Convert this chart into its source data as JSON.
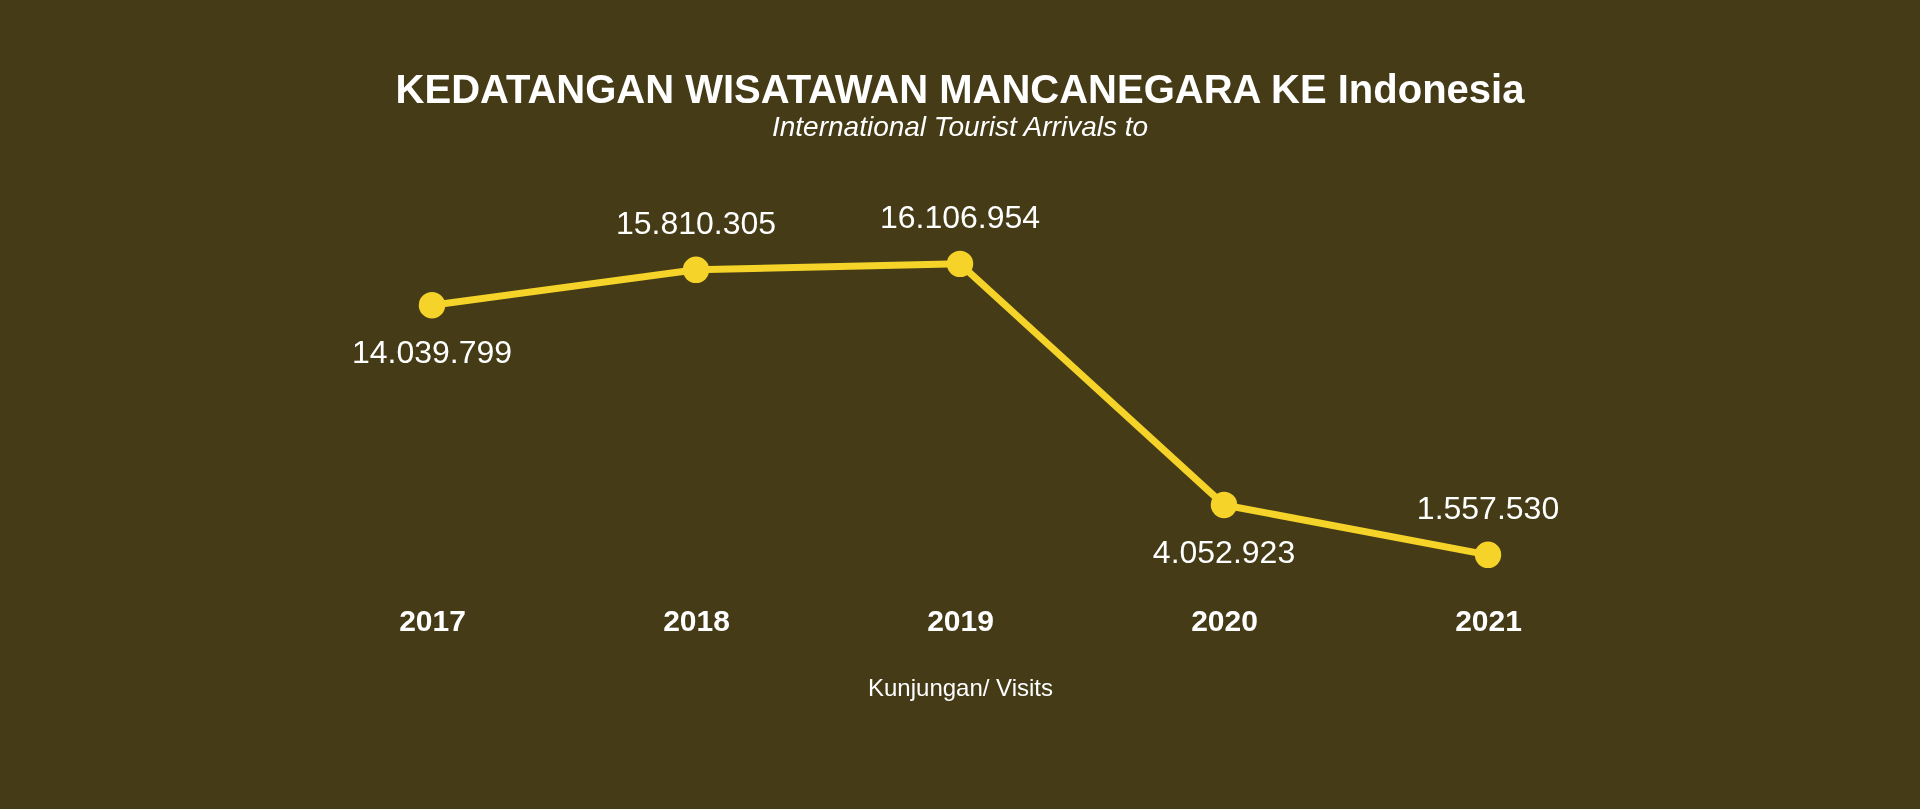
{
  "chart_data": {
    "type": "line",
    "title": "KEDATANGAN WISATAWAN MANCANEGARA KE Indonesia",
    "subtitle": "International Tourist Arrivals to",
    "xlabel": "Kunjungan/  Visits",
    "categories": [
      "2017",
      "2018",
      "2019",
      "2020",
      "2021"
    ],
    "series": [
      {
        "color": "#f5d328",
        "values": [
          14039799,
          15810305,
          16106954,
          4052923,
          1557530
        ],
        "value_labels": [
          "14.039.799",
          "15.810.305",
          "16.106.954",
          "4.052.923",
          "1.557.530"
        ]
      }
    ],
    "marker": "circle",
    "grid": false
  }
}
